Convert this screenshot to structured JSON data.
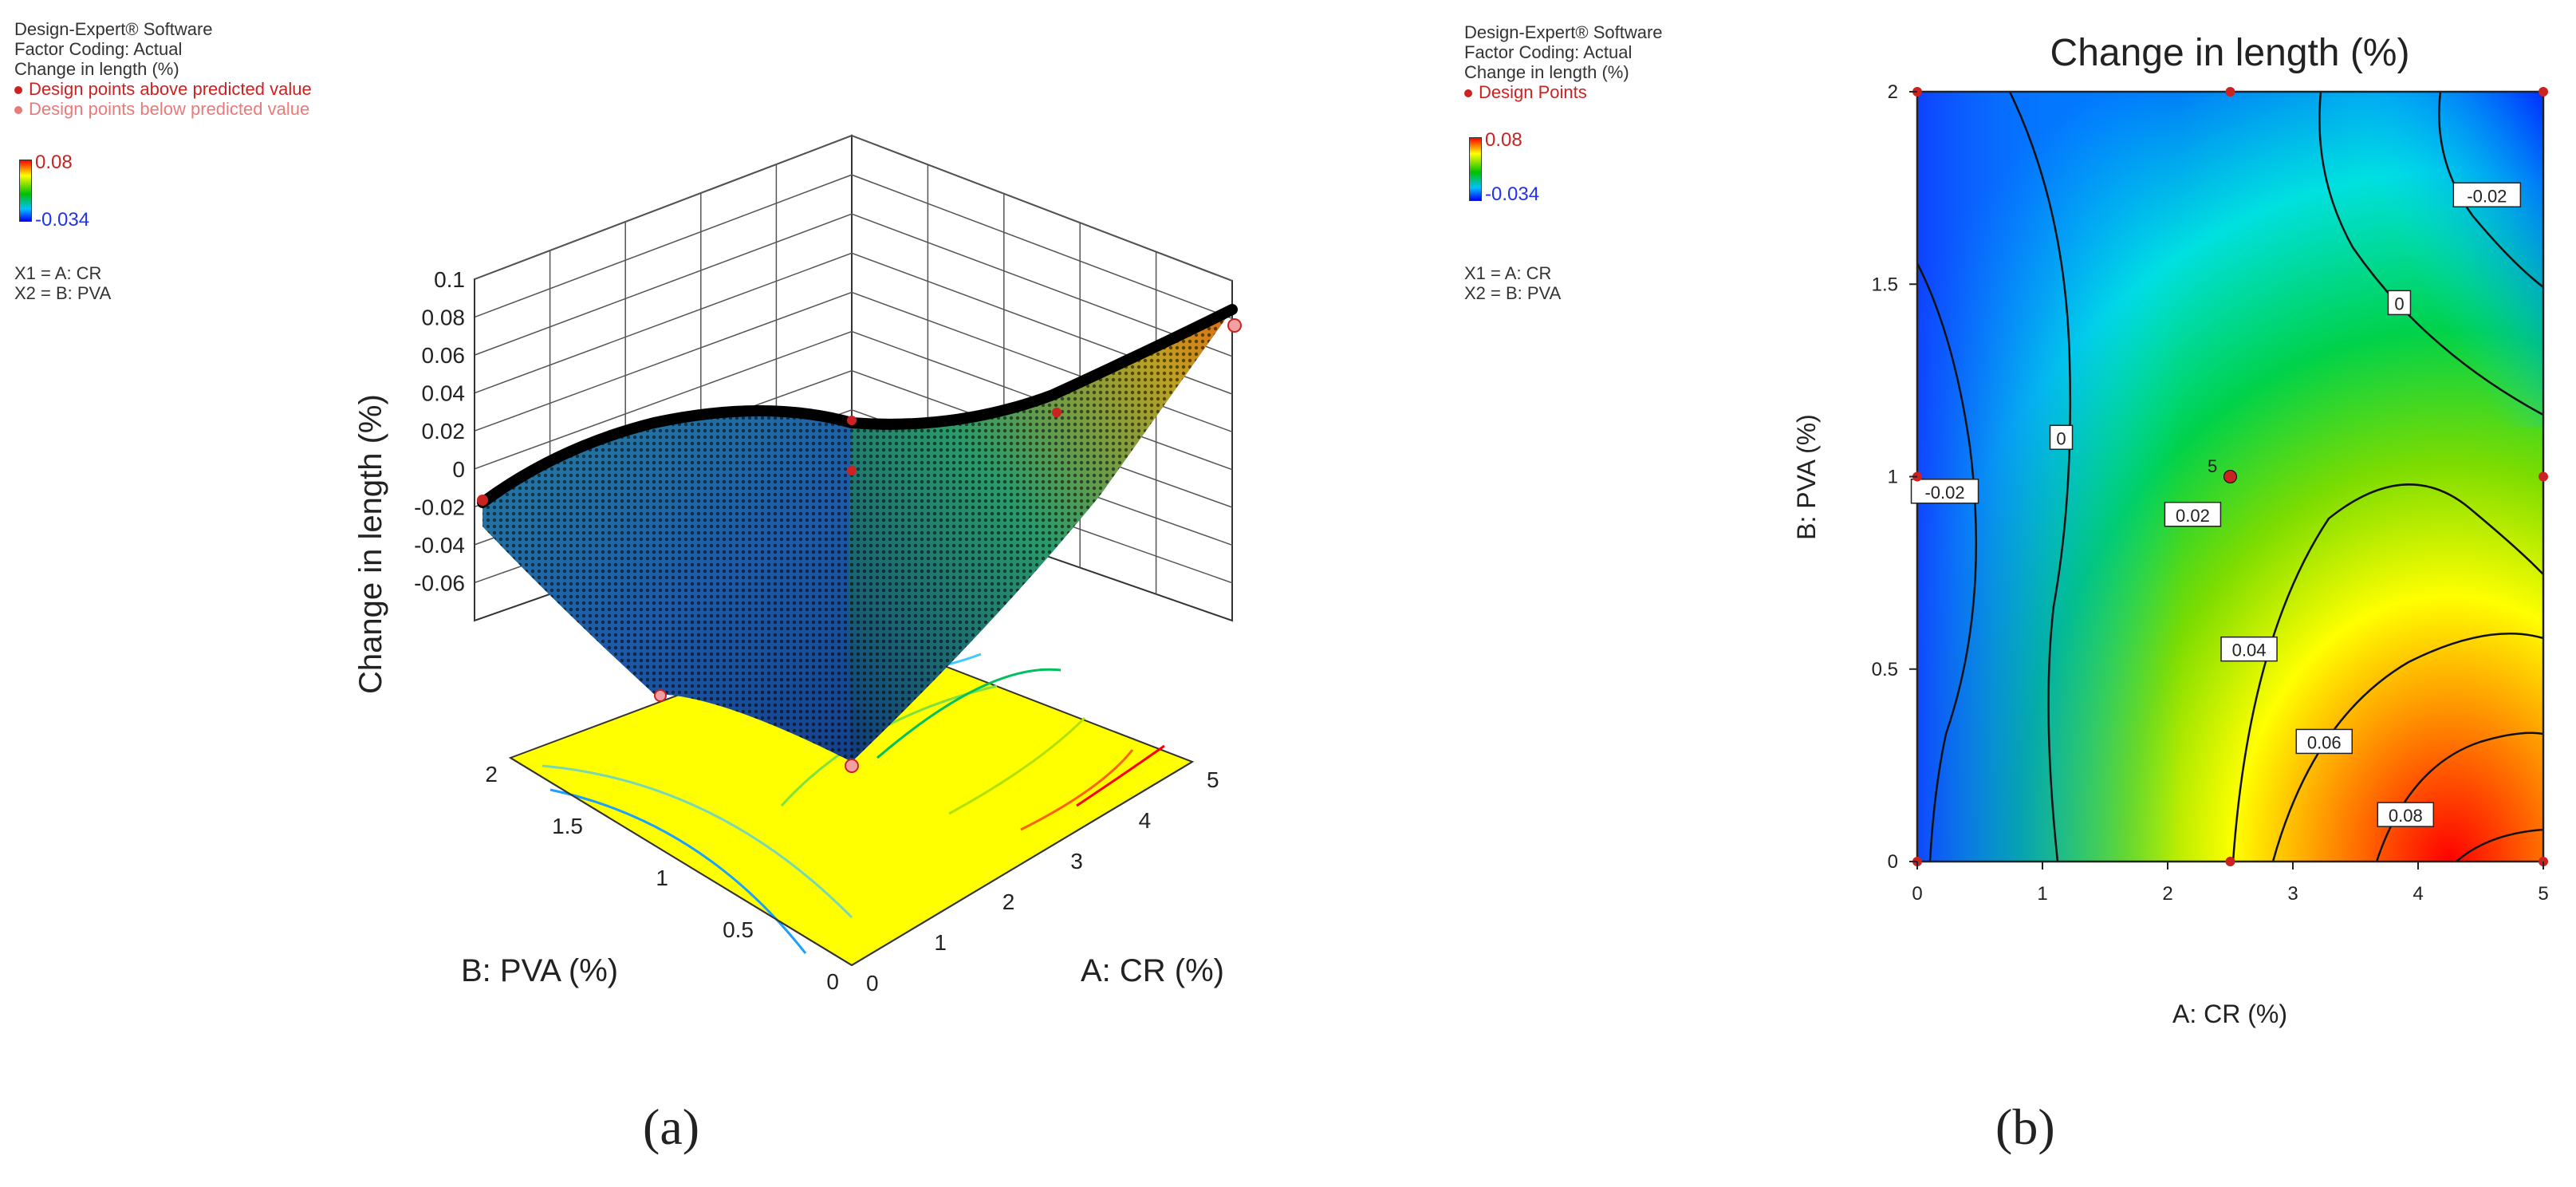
{
  "panel_a": {
    "software": "Design-Expert® Software",
    "coding": "Factor Coding: Actual",
    "response": "Change in length (%)",
    "design_above": "Design points above predicted value",
    "design_below": "Design points below predicted value",
    "color_max": "0.08",
    "color_min": "-0.034",
    "x1": "X1 = A: CR",
    "x2": "X2 = B: PVA",
    "caption": "(a)"
  },
  "panel_b": {
    "software": "Design-Expert® Software",
    "coding": "Factor Coding: Actual",
    "response": "Change in length (%)",
    "design_points": "Design Points",
    "color_max": "0.08",
    "color_min": "-0.034",
    "x1": "X1 = A: CR",
    "x2": "X2 = B: PVA",
    "caption": "(b)"
  },
  "chart_data": [
    {
      "type": "surface",
      "zlabel": "Change in length (%)",
      "xlabel": "A: CR (%)",
      "ylabel": "B: PVA (%)",
      "zticks": [
        "0.1",
        "0.08",
        "0.06",
        "0.04",
        "0.02",
        "0",
        "-0.02",
        "-0.04",
        "-0.06"
      ],
      "xticks": [
        "0",
        "1",
        "2",
        "3",
        "4",
        "5"
      ],
      "yticks": [
        "0",
        "0.5",
        "1",
        "1.5",
        "2"
      ],
      "zlim": [
        -0.08,
        0.1
      ],
      "xlim": [
        0,
        5
      ],
      "ylim": [
        0,
        2
      ],
      "colorscale": [
        "#0000ff",
        "#00c0ff",
        "#00c000",
        "#ffff00",
        "#ff0000"
      ]
    },
    {
      "type": "contour",
      "title": "Change in length (%)",
      "xlabel": "A: CR (%)",
      "ylabel": "B: PVA (%)",
      "xticks": [
        "0",
        "1",
        "2",
        "3",
        "4",
        "5"
      ],
      "yticks": [
        "0",
        "0.5",
        "1",
        "1.5",
        "2"
      ],
      "xlim": [
        0,
        5
      ],
      "ylim": [
        0,
        2
      ],
      "contour_levels": [
        -0.02,
        0,
        0.02,
        0.04,
        0.06,
        0.08
      ],
      "contour_labels": [
        {
          "text": "-0.02",
          "x": 0.22,
          "y": 0.96
        },
        {
          "text": "0",
          "x": 1.15,
          "y": 1.1
        },
        {
          "text": "0.02",
          "x": 2.2,
          "y": 0.9
        },
        {
          "text": "0.04",
          "x": 2.65,
          "y": 0.55
        },
        {
          "text": "0.06",
          "x": 3.25,
          "y": 0.31
        },
        {
          "text": "0.08",
          "x": 3.9,
          "y": 0.12
        },
        {
          "text": "0",
          "x": 3.85,
          "y": 1.45
        },
        {
          "text": "-0.02",
          "x": 4.55,
          "y": 1.73
        }
      ],
      "design_points": [
        {
          "x": 0,
          "y": 0
        },
        {
          "x": 2.5,
          "y": 0
        },
        {
          "x": 5,
          "y": 0
        },
        {
          "x": 0,
          "y": 1
        },
        {
          "x": 2.5,
          "y": 1
        },
        {
          "x": 5,
          "y": 1
        },
        {
          "x": 0,
          "y": 2
        },
        {
          "x": 2.5,
          "y": 2
        },
        {
          "x": 5,
          "y": 2
        }
      ],
      "center_replicates": "5"
    }
  ]
}
